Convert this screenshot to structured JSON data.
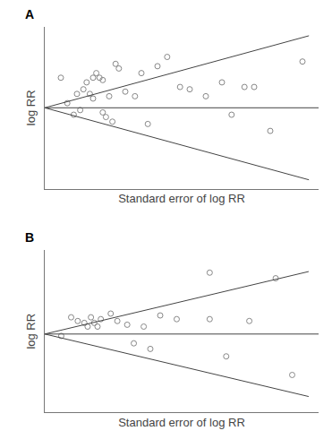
{
  "chart_data": [
    {
      "type": "scatter",
      "title": "A",
      "x_label": "Standard error of log RR",
      "y_label": "log RR",
      "xlim": [
        0,
        0.85
      ],
      "ylim": [
        -0.35,
        0.35
      ],
      "xticks": [],
      "yticks": [],
      "tick_labels": false,
      "grid": false,
      "series": [
        {
          "type": "scatter",
          "marker": "circle-open",
          "color": "#888888",
          "x": [
            0.05,
            0.07,
            0.09,
            0.1,
            0.11,
            0.12,
            0.13,
            0.14,
            0.15,
            0.15,
            0.16,
            0.17,
            0.18,
            0.18,
            0.19,
            0.2,
            0.21,
            0.22,
            0.23,
            0.25,
            0.28,
            0.3,
            0.32,
            0.35,
            0.38,
            0.42,
            0.45,
            0.5,
            0.55,
            0.58,
            0.62,
            0.65,
            0.7,
            0.8
          ],
          "values": [
            0.13,
            0.02,
            -0.03,
            0.06,
            -0.01,
            0.08,
            0.11,
            0.06,
            0.04,
            0.13,
            0.15,
            0.13,
            0.12,
            -0.02,
            -0.04,
            0.05,
            -0.06,
            0.19,
            0.17,
            0.07,
            0.05,
            0.15,
            -0.07,
            0.18,
            0.22,
            0.09,
            0.08,
            0.05,
            0.11,
            -0.03,
            0.09,
            0.09,
            -0.1,
            0.2
          ]
        },
        {
          "type": "line",
          "line_style": "solid",
          "color": "#444444",
          "x": [
            0,
            0.82
          ],
          "values": [
            0,
            0.3116
          ]
        },
        {
          "type": "line",
          "line_style": "solid",
          "color": "#444444",
          "x": [
            0,
            0.82
          ],
          "values": [
            0,
            -0.3116
          ]
        },
        {
          "type": "line",
          "line_style": "solid",
          "color": "#444444",
          "x": [
            0,
            0.85
          ],
          "values": [
            0,
            0
          ]
        }
      ]
    },
    {
      "type": "scatter",
      "title": "B",
      "x_label": "Standard error of log RR",
      "y_label": "log RR",
      "xlim": [
        0,
        0.83
      ],
      "ylim": [
        -0.42,
        0.45
      ],
      "xticks": [],
      "yticks": [],
      "tick_labels": false,
      "grid": false,
      "series": [
        {
          "type": "scatter",
          "marker": "circle-open",
          "color": "#888888",
          "x": [
            0.05,
            0.08,
            0.1,
            0.12,
            0.13,
            0.14,
            0.15,
            0.16,
            0.17,
            0.2,
            0.22,
            0.25,
            0.27,
            0.3,
            0.32,
            0.35,
            0.4,
            0.5,
            0.5,
            0.55,
            0.62,
            0.7,
            0.75
          ],
          "values": [
            -0.01,
            0.09,
            0.07,
            0.06,
            0.04,
            0.09,
            0.06,
            0.04,
            0.08,
            0.11,
            0.07,
            0.05,
            -0.05,
            0.04,
            -0.08,
            0.1,
            0.08,
            0.33,
            0.08,
            -0.12,
            0.07,
            0.3,
            -0.22
          ]
        },
        {
          "type": "line",
          "line_style": "solid",
          "color": "#444444",
          "x": [
            0,
            0.8
          ],
          "values": [
            0,
            0.336
          ]
        },
        {
          "type": "line",
          "line_style": "solid",
          "color": "#444444",
          "x": [
            0,
            0.8
          ],
          "values": [
            0,
            -0.336
          ]
        },
        {
          "type": "line",
          "line_style": "solid",
          "color": "#444444",
          "x": [
            0,
            0.83
          ],
          "values": [
            0,
            0
          ]
        }
      ]
    }
  ]
}
